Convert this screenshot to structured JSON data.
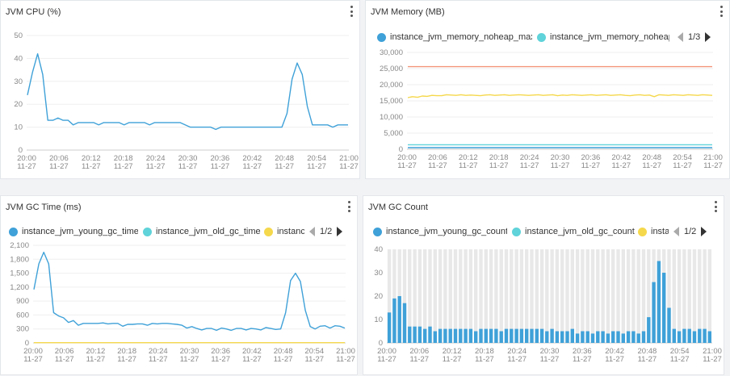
{
  "panels": {
    "cpu": {
      "title": "JVM CPU (%)"
    },
    "memory": {
      "title": "JVM Memory (MB)",
      "legend": [
        "instance_jvm_memory_noheap_max",
        "instance_jvm_memory_noheap"
      ],
      "pager": "1/3"
    },
    "gc_time": {
      "title": "JVM GC Time (ms)",
      "legend": [
        "instance_jvm_young_gc_time",
        "instance_jvm_old_gc_time",
        "instance"
      ],
      "pager": "1/2"
    },
    "gc_count": {
      "title": "JVM GC Count",
      "legend": [
        "instance_jvm_young_gc_count",
        "instance_jvm_old_gc_count",
        "insta"
      ],
      "pager": "1/2"
    }
  },
  "colors": {
    "blue": "#3fa1d8",
    "cyan": "#5fd3d9",
    "yellow": "#f5d84c",
    "salmon": "#f3957a",
    "bar_bg": "#e8e8e8",
    "axis": "#cccccc",
    "tick": "#888888"
  },
  "chart_data": [
    {
      "id": "cpu",
      "type": "line",
      "title": "JVM CPU (%)",
      "ylim": [
        0,
        50
      ],
      "yticks": [
        0,
        10,
        20,
        30,
        40,
        50
      ],
      "x_ticks": [
        [
          "20:00",
          "11-27"
        ],
        [
          "20:06",
          "11-27"
        ],
        [
          "20:12",
          "11-27"
        ],
        [
          "20:18",
          "11-27"
        ],
        [
          "20:24",
          "11-27"
        ],
        [
          "20:30",
          "11-27"
        ],
        [
          "20:36",
          "11-27"
        ],
        [
          "20:42",
          "11-27"
        ],
        [
          "20:48",
          "11-27"
        ],
        [
          "20:54",
          "11-27"
        ],
        [
          "21:00",
          "11-27"
        ]
      ],
      "grid": true,
      "series": [
        {
          "color": "#3fa1d8",
          "values": [
            24,
            34,
            42,
            33,
            13,
            13,
            14,
            13,
            13,
            11,
            12,
            12,
            12,
            12,
            11,
            12,
            12,
            12,
            12,
            11,
            12,
            12,
            12,
            12,
            11,
            12,
            12,
            12,
            12,
            12,
            12,
            11,
            10,
            10,
            10,
            10,
            10,
            9,
            10,
            10,
            10,
            10,
            10,
            10,
            10,
            10,
            10,
            10,
            10,
            10,
            10,
            16,
            31,
            38,
            33,
            19,
            11,
            11,
            11,
            11,
            10,
            11,
            11,
            11
          ]
        }
      ]
    },
    {
      "id": "memory",
      "type": "line",
      "title": "JVM Memory (MB)",
      "ylim": [
        0,
        30000
      ],
      "yticks": [
        0,
        5000,
        10000,
        15000,
        20000,
        25000,
        30000
      ],
      "ytick_labels": [
        "0",
        "5,000",
        "10,000",
        "15,000",
        "20,000",
        "25,000",
        "30,000"
      ],
      "x_ticks": [
        [
          "20:00",
          "11-27"
        ],
        [
          "20:06",
          "11-27"
        ],
        [
          "20:12",
          "11-27"
        ],
        [
          "20:18",
          "11-27"
        ],
        [
          "20:24",
          "11-27"
        ],
        [
          "20:30",
          "11-27"
        ],
        [
          "20:36",
          "11-27"
        ],
        [
          "20:42",
          "11-27"
        ],
        [
          "20:48",
          "11-27"
        ],
        [
          "20:54",
          "11-27"
        ],
        [
          "21:00",
          "11-27"
        ]
      ],
      "grid": true,
      "series": [
        {
          "color": "#f3957a",
          "values": [
            25600,
            25600,
            25600,
            25600,
            25600,
            25600,
            25600,
            25600,
            25600,
            25600,
            25600,
            25600,
            25600,
            25600,
            25600,
            25600,
            25600,
            25600,
            25600,
            25600,
            25600,
            25600,
            25600,
            25600,
            25600,
            25600,
            25600,
            25600,
            25600,
            25600,
            25600,
            25600,
            25600,
            25600,
            25600,
            25600,
            25600,
            25600,
            25600,
            25600,
            25600,
            25600,
            25600,
            25600,
            25600,
            25600,
            25600,
            25600,
            25600,
            25600,
            25600,
            25600,
            25600,
            25600,
            25600,
            25600,
            25600,
            25600,
            25600,
            25600,
            25600,
            25600,
            25600,
            25600
          ]
        },
        {
          "color": "#f5d84c",
          "values": [
            16000,
            16300,
            16100,
            16500,
            16400,
            16700,
            16600,
            16600,
            16900,
            16800,
            16700,
            16900,
            16700,
            16800,
            16700,
            16600,
            16800,
            16900,
            16700,
            16800,
            16900,
            16700,
            16800,
            16900,
            16800,
            16700,
            16800,
            16900,
            16700,
            16800,
            16900,
            16600,
            16800,
            16700,
            16900,
            16800,
            16700,
            16800,
            16900,
            16700,
            16800,
            16900,
            16700,
            16800,
            16900,
            16700,
            16600,
            16800,
            16900,
            16700,
            16800,
            16300,
            16900,
            16800,
            16700,
            16900,
            16800,
            16700,
            16900,
            16800,
            16700,
            16900,
            16800,
            16700
          ]
        },
        {
          "color": "#5fd3d9",
          "values": [
            1400,
            1400,
            1400,
            1400,
            1400,
            1400,
            1400,
            1400,
            1400,
            1400,
            1400,
            1400,
            1400,
            1400,
            1400,
            1400,
            1400,
            1400,
            1400,
            1400,
            1400,
            1400,
            1400,
            1400,
            1400,
            1400,
            1400,
            1400,
            1400,
            1400,
            1400,
            1400,
            1400,
            1400,
            1400,
            1400,
            1400,
            1400,
            1400,
            1400,
            1400,
            1400,
            1400,
            1400,
            1400,
            1400,
            1400,
            1400,
            1400,
            1400,
            1400,
            1400,
            1400,
            1400,
            1400,
            1400,
            1400,
            1400,
            1400,
            1400,
            1400,
            1400,
            1400,
            1400
          ]
        },
        {
          "color": "#3fa1d8",
          "values": [
            500,
            500,
            500,
            500,
            500,
            500,
            500,
            500,
            500,
            500,
            500,
            500,
            500,
            500,
            500,
            500,
            500,
            500,
            500,
            500,
            500,
            500,
            500,
            500,
            500,
            500,
            500,
            500,
            500,
            500,
            500,
            500,
            500,
            500,
            500,
            500,
            500,
            500,
            500,
            500,
            500,
            500,
            500,
            500,
            500,
            500,
            500,
            500,
            500,
            500,
            500,
            500,
            500,
            500,
            500,
            500,
            500,
            500,
            500,
            500,
            500,
            500,
            500,
            500
          ]
        }
      ]
    },
    {
      "id": "gc_time",
      "type": "line",
      "title": "JVM GC Time (ms)",
      "ylim": [
        0,
        2100
      ],
      "yticks": [
        0,
        300,
        600,
        900,
        1200,
        1500,
        1800,
        2100
      ],
      "ytick_labels": [
        "0",
        "300",
        "600",
        "900",
        "1,200",
        "1,500",
        "1,800",
        "2,100"
      ],
      "x_ticks": [
        [
          "20:00",
          "11-27"
        ],
        [
          "20:06",
          "11-27"
        ],
        [
          "20:12",
          "11-27"
        ],
        [
          "20:18",
          "11-27"
        ],
        [
          "20:24",
          "11-27"
        ],
        [
          "20:30",
          "11-27"
        ],
        [
          "20:36",
          "11-27"
        ],
        [
          "20:42",
          "11-27"
        ],
        [
          "20:48",
          "11-27"
        ],
        [
          "20:54",
          "11-27"
        ],
        [
          "21:00",
          "11-27"
        ]
      ],
      "grid": true,
      "series": [
        {
          "color": "#3fa1d8",
          "values": [
            1150,
            1700,
            1950,
            1700,
            650,
            580,
            540,
            440,
            480,
            380,
            420,
            420,
            420,
            420,
            430,
            410,
            420,
            420,
            360,
            400,
            400,
            410,
            410,
            380,
            420,
            410,
            420,
            420,
            410,
            400,
            380,
            320,
            350,
            310,
            280,
            310,
            310,
            270,
            320,
            300,
            270,
            310,
            310,
            280,
            310,
            300,
            280,
            330,
            310,
            290,
            300,
            650,
            1340,
            1500,
            1320,
            700,
            350,
            300,
            360,
            370,
            320,
            370,
            360,
            320
          ]
        },
        {
          "color": "#f5d84c",
          "values": [
            5,
            5,
            5,
            5,
            5,
            5,
            5,
            5,
            5,
            5,
            5,
            5,
            5,
            5,
            5,
            5,
            5,
            5,
            5,
            5,
            5,
            5,
            5,
            5,
            5,
            5,
            5,
            5,
            5,
            5,
            5,
            5,
            5,
            5,
            5,
            5,
            5,
            5,
            5,
            5,
            5,
            5,
            5,
            5,
            5,
            5,
            5,
            5,
            5,
            5,
            5,
            5,
            5,
            5,
            5,
            5,
            5,
            5,
            5,
            5,
            5,
            5,
            5,
            5
          ]
        }
      ]
    },
    {
      "id": "gc_count",
      "type": "bar",
      "title": "JVM GC Count",
      "ylim": [
        0,
        40
      ],
      "yticks": [
        0,
        10,
        20,
        30,
        40
      ],
      "x_ticks": [
        [
          "20:00",
          "11-27"
        ],
        [
          "20:06",
          "11-27"
        ],
        [
          "20:12",
          "11-27"
        ],
        [
          "20:18",
          "11-27"
        ],
        [
          "20:24",
          "11-27"
        ],
        [
          "20:30",
          "11-27"
        ],
        [
          "20:36",
          "11-27"
        ],
        [
          "20:42",
          "11-27"
        ],
        [
          "20:48",
          "11-27"
        ],
        [
          "20:54",
          "11-27"
        ],
        [
          "21:00",
          "11-27"
        ]
      ],
      "grid": false,
      "series": [
        {
          "color": "#3fa1d8",
          "values": [
            13,
            19,
            20,
            17,
            7,
            7,
            7,
            6,
            7,
            5,
            6,
            6,
            6,
            6,
            6,
            6,
            6,
            5,
            6,
            6,
            6,
            6,
            5,
            6,
            6,
            6,
            6,
            6,
            6,
            6,
            6,
            5,
            6,
            5,
            5,
            5,
            6,
            4,
            5,
            5,
            4,
            5,
            5,
            4,
            5,
            5,
            4,
            5,
            5,
            4,
            5,
            11,
            26,
            35,
            30,
            15,
            6,
            5,
            6,
            6,
            5,
            6,
            6,
            5
          ]
        }
      ]
    }
  ]
}
